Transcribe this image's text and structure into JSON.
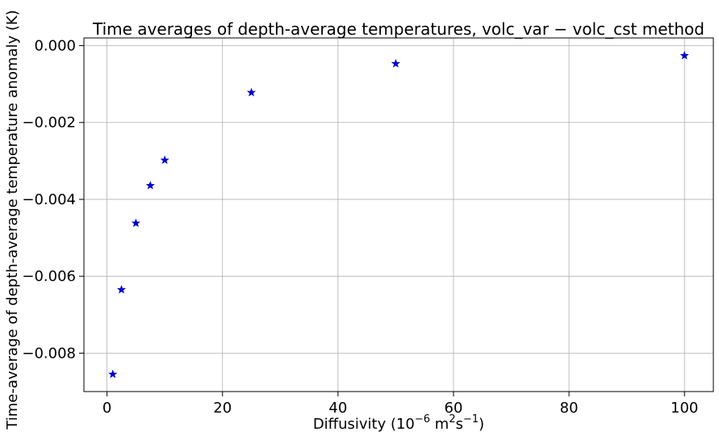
{
  "chart_data": {
    "type": "scatter",
    "title": "Time averages of depth-average temperatures, volc_var − volc_cst method",
    "xlabel": {
      "prefix": "Diffusivity (10",
      "exp1": "−6",
      "mid": " m",
      "exp2": "2",
      "mid2": "s",
      "exp3": "−1",
      "suffix": ")"
    },
    "ylabel": "Time-average of depth-average temperature anomaly (K)",
    "xlim": [
      -4,
      105
    ],
    "ylim": [
      -0.009,
      0.0002
    ],
    "xticks": [
      0,
      20,
      40,
      60,
      80,
      100
    ],
    "xtick_labels": [
      "0",
      "20",
      "40",
      "60",
      "80",
      "100"
    ],
    "yticks": [
      0.0,
      -0.002,
      -0.004,
      -0.006,
      -0.008
    ],
    "ytick_labels": [
      "0.000",
      "−0.002",
      "−0.004",
      "−0.006",
      "−0.008"
    ],
    "grid": true,
    "marker": "star",
    "color": "#0000cc",
    "points": [
      {
        "x": 1,
        "y": -0.00855
      },
      {
        "x": 2.5,
        "y": -0.00635
      },
      {
        "x": 5,
        "y": -0.00462
      },
      {
        "x": 7.5,
        "y": -0.00364
      },
      {
        "x": 10,
        "y": -0.00298
      },
      {
        "x": 25,
        "y": -0.00122
      },
      {
        "x": 50,
        "y": -0.00047
      },
      {
        "x": 100,
        "y": -0.00026
      }
    ]
  }
}
